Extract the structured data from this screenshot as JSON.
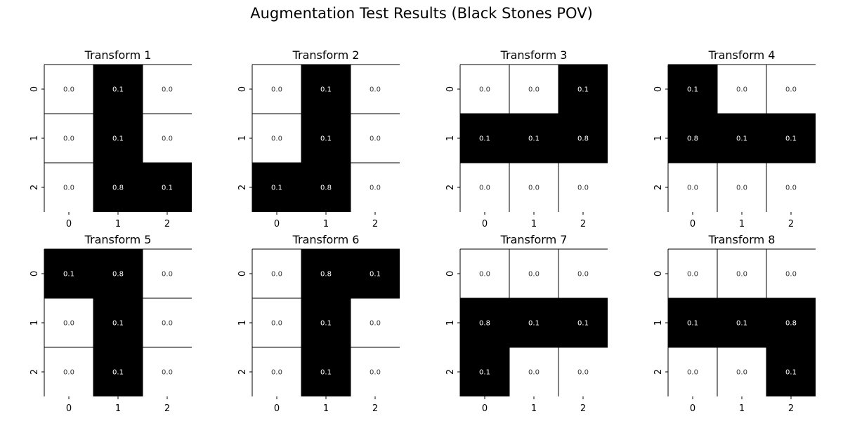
{
  "suptitle": "Augmentation Test Results (Black Stones POV)",
  "colors": {
    "stone": "#000000",
    "empty": "#ffffff",
    "stone_text": "#ffffff",
    "empty_text": "#333333"
  },
  "chart_data": [
    {
      "type": "heatmap",
      "title": "Transform 1",
      "x_ticks": [
        "0",
        "1",
        "2"
      ],
      "y_ticks": [
        "0",
        "1",
        "2"
      ],
      "stones": [
        [
          0,
          1,
          0
        ],
        [
          0,
          1,
          0
        ],
        [
          0,
          1,
          1
        ]
      ],
      "values": [
        [
          "0.0",
          "0.1",
          "0.0"
        ],
        [
          "0.0",
          "0.1",
          "0.0"
        ],
        [
          "0.0",
          "0.8",
          "0.1"
        ]
      ]
    },
    {
      "type": "heatmap",
      "title": "Transform 2",
      "x_ticks": [
        "0",
        "1",
        "2"
      ],
      "y_ticks": [
        "0",
        "1",
        "2"
      ],
      "stones": [
        [
          0,
          1,
          0
        ],
        [
          0,
          1,
          0
        ],
        [
          1,
          1,
          0
        ]
      ],
      "values": [
        [
          "0.0",
          "0.1",
          "0.0"
        ],
        [
          "0.0",
          "0.1",
          "0.0"
        ],
        [
          "0.1",
          "0.8",
          "0.0"
        ]
      ]
    },
    {
      "type": "heatmap",
      "title": "Transform 3",
      "x_ticks": [
        "0",
        "1",
        "2"
      ],
      "y_ticks": [
        "0",
        "1",
        "2"
      ],
      "stones": [
        [
          0,
          0,
          1
        ],
        [
          1,
          1,
          1
        ],
        [
          0,
          0,
          0
        ]
      ],
      "values": [
        [
          "0.0",
          "0.0",
          "0.1"
        ],
        [
          "0.1",
          "0.1",
          "0.8"
        ],
        [
          "0.0",
          "0.0",
          "0.0"
        ]
      ]
    },
    {
      "type": "heatmap",
      "title": "Transform 4",
      "x_ticks": [
        "0",
        "1",
        "2"
      ],
      "y_ticks": [
        "0",
        "1",
        "2"
      ],
      "stones": [
        [
          1,
          0,
          0
        ],
        [
          1,
          1,
          1
        ],
        [
          0,
          0,
          0
        ]
      ],
      "values": [
        [
          "0.1",
          "0.0",
          "0.0"
        ],
        [
          "0.8",
          "0.1",
          "0.1"
        ],
        [
          "0.0",
          "0.0",
          "0.0"
        ]
      ]
    },
    {
      "type": "heatmap",
      "title": "Transform 5",
      "x_ticks": [
        "0",
        "1",
        "2"
      ],
      "y_ticks": [
        "0",
        "1",
        "2"
      ],
      "stones": [
        [
          1,
          1,
          0
        ],
        [
          0,
          1,
          0
        ],
        [
          0,
          1,
          0
        ]
      ],
      "values": [
        [
          "0.1",
          "0.8",
          "0.0"
        ],
        [
          "0.0",
          "0.1",
          "0.0"
        ],
        [
          "0.0",
          "0.1",
          "0.0"
        ]
      ]
    },
    {
      "type": "heatmap",
      "title": "Transform 6",
      "x_ticks": [
        "0",
        "1",
        "2"
      ],
      "y_ticks": [
        "0",
        "1",
        "2"
      ],
      "stones": [
        [
          0,
          1,
          1
        ],
        [
          0,
          1,
          0
        ],
        [
          0,
          1,
          0
        ]
      ],
      "values": [
        [
          "0.0",
          "0.8",
          "0.1"
        ],
        [
          "0.0",
          "0.1",
          "0.0"
        ],
        [
          "0.0",
          "0.1",
          "0.0"
        ]
      ]
    },
    {
      "type": "heatmap",
      "title": "Transform 7",
      "x_ticks": [
        "0",
        "1",
        "2"
      ],
      "y_ticks": [
        "0",
        "1",
        "2"
      ],
      "stones": [
        [
          0,
          0,
          0
        ],
        [
          1,
          1,
          1
        ],
        [
          1,
          0,
          0
        ]
      ],
      "values": [
        [
          "0.0",
          "0.0",
          "0.0"
        ],
        [
          "0.8",
          "0.1",
          "0.1"
        ],
        [
          "0.1",
          "0.0",
          "0.0"
        ]
      ]
    },
    {
      "type": "heatmap",
      "title": "Transform 8",
      "x_ticks": [
        "0",
        "1",
        "2"
      ],
      "y_ticks": [
        "0",
        "1",
        "2"
      ],
      "stones": [
        [
          0,
          0,
          0
        ],
        [
          1,
          1,
          1
        ],
        [
          0,
          0,
          1
        ]
      ],
      "values": [
        [
          "0.0",
          "0.0",
          "0.0"
        ],
        [
          "0.1",
          "0.1",
          "0.8"
        ],
        [
          "0.0",
          "0.0",
          "0.1"
        ]
      ]
    }
  ]
}
